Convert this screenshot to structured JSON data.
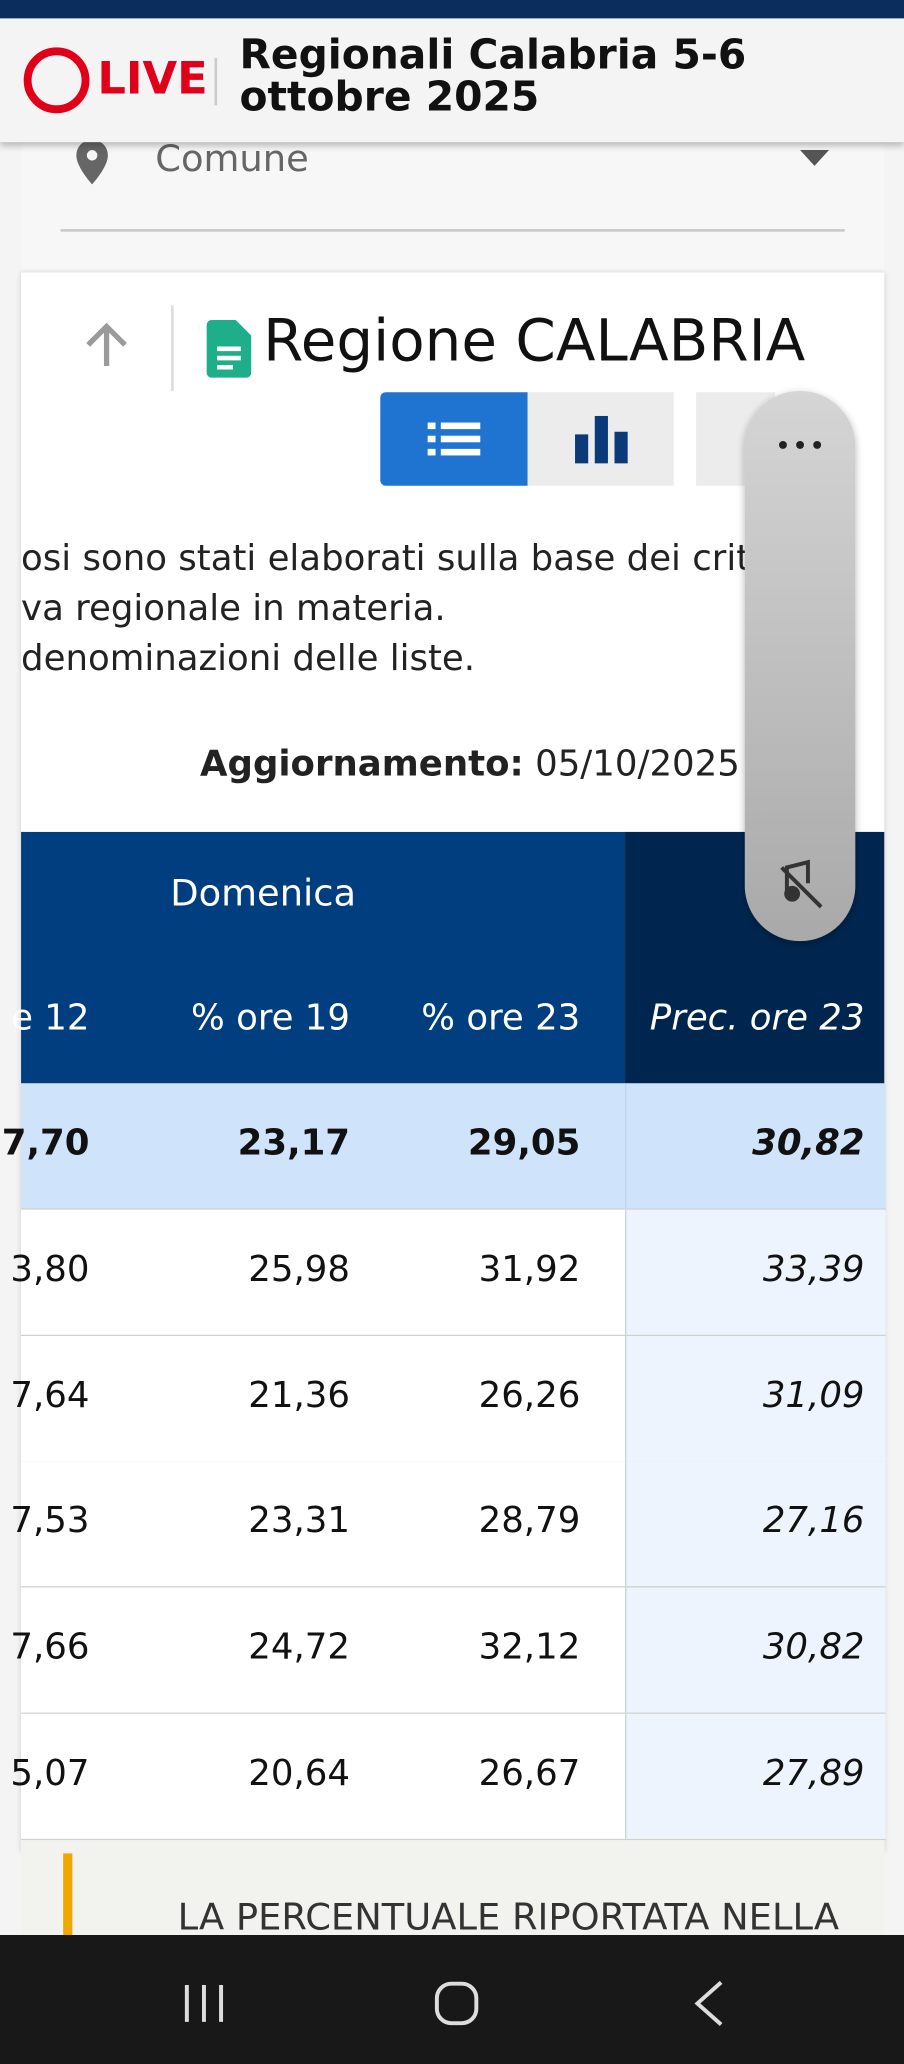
{
  "header": {
    "live": "LIVE",
    "title_line1": "Regionali Calabria 5-6",
    "title_line2": "ottobre 2025"
  },
  "filter": {
    "placeholder": "Comune"
  },
  "region": {
    "title": "Regione CALABRIA"
  },
  "intro": {
    "lines": [
      "osi sono stati elaborati sulla base dei crite",
      "va regionale in materia.",
      "denominazioni delle liste."
    ]
  },
  "update": {
    "label": "Aggiornamento:",
    "value": "05/10/2025 -"
  },
  "table": {
    "group": "Domenica",
    "columns": [
      "e 12",
      "% ore 19",
      "% ore 23",
      "Prec. ore 23"
    ],
    "rows": [
      [
        "7,70",
        "23,17",
        "29,05",
        "30,82"
      ],
      [
        "3,80",
        "25,98",
        "31,92",
        "33,39"
      ],
      [
        "7,64",
        "21,36",
        "26,26",
        "31,09"
      ],
      [
        "7,53",
        "23,31",
        "28,79",
        "27,16"
      ],
      [
        "7,66",
        "24,72",
        "32,12",
        "30,82"
      ],
      [
        "5,07",
        "20,64",
        "26,67",
        "27,89"
      ]
    ]
  },
  "notice": {
    "text": "LA PERCENTUALE RIPORTATA NELLA"
  }
}
